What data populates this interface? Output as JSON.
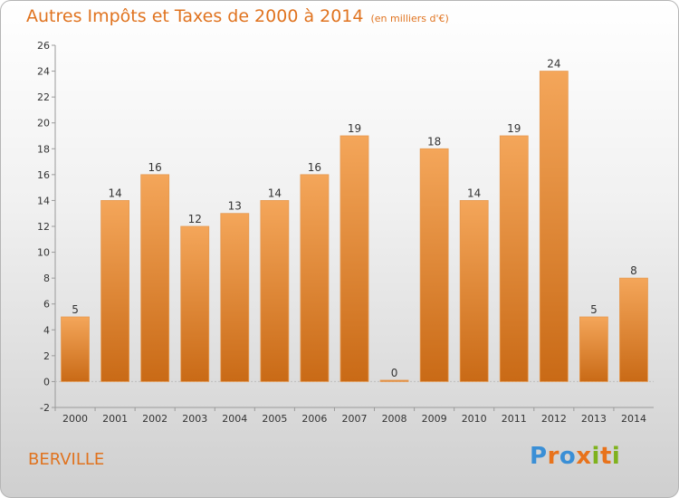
{
  "title": "Autres Impôts et Taxes de 2000 à 2014",
  "title_unit": "(en milliers d'€)",
  "commune": "BERVILLE",
  "logo": {
    "letters": [
      "P",
      "r",
      "o",
      "x",
      "i",
      "t",
      "i"
    ],
    "colors": [
      "#3a8fd6",
      "#e8731c",
      "#3a8fd6",
      "#e8731c",
      "#7fb21d",
      "#e8731c",
      "#7fb21d"
    ]
  },
  "colors": {
    "bar_top": "#f4a65a",
    "bar_bottom": "#c96a16",
    "accent": "#e0731f"
  },
  "chart_data": {
    "type": "bar",
    "title": "Autres Impôts et Taxes de 2000 à 2014",
    "categories": [
      "2000",
      "2001",
      "2002",
      "2003",
      "2004",
      "2005",
      "2006",
      "2007",
      "2008",
      "2009",
      "2010",
      "2011",
      "2012",
      "2013",
      "2014"
    ],
    "values": [
      5,
      14,
      16,
      12,
      13,
      14,
      16,
      19,
      0,
      18,
      14,
      19,
      24,
      5,
      8
    ],
    "ylim": [
      -2,
      26
    ],
    "yticks": [
      -2,
      0,
      2,
      4,
      6,
      8,
      10,
      12,
      14,
      16,
      18,
      20,
      22,
      24,
      26
    ],
    "grid": false,
    "legend": "none"
  }
}
